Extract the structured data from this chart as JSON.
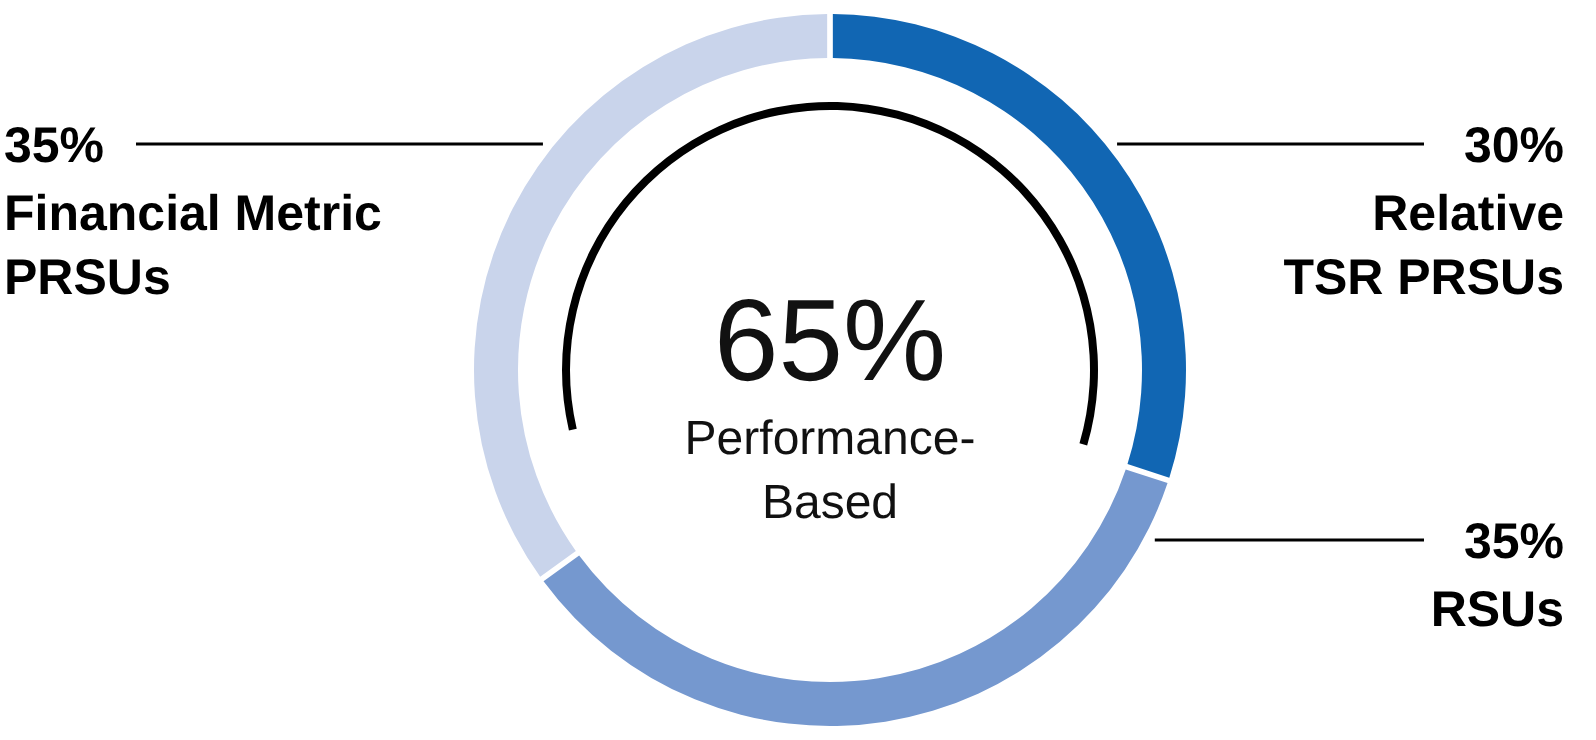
{
  "chart_data": {
    "type": "donut",
    "categories": [
      "Relative TSR PRSUs",
      "RSUs",
      "Financial Metric PRSUs"
    ],
    "values": [
      30,
      35,
      35
    ],
    "colors": [
      "#1166b3",
      "#7598cf",
      "#c9d4eb"
    ],
    "value_labels": [
      "30%",
      "35%",
      "35%"
    ],
    "annotations": [
      "65%",
      "Performance-Based"
    ]
  }
}
